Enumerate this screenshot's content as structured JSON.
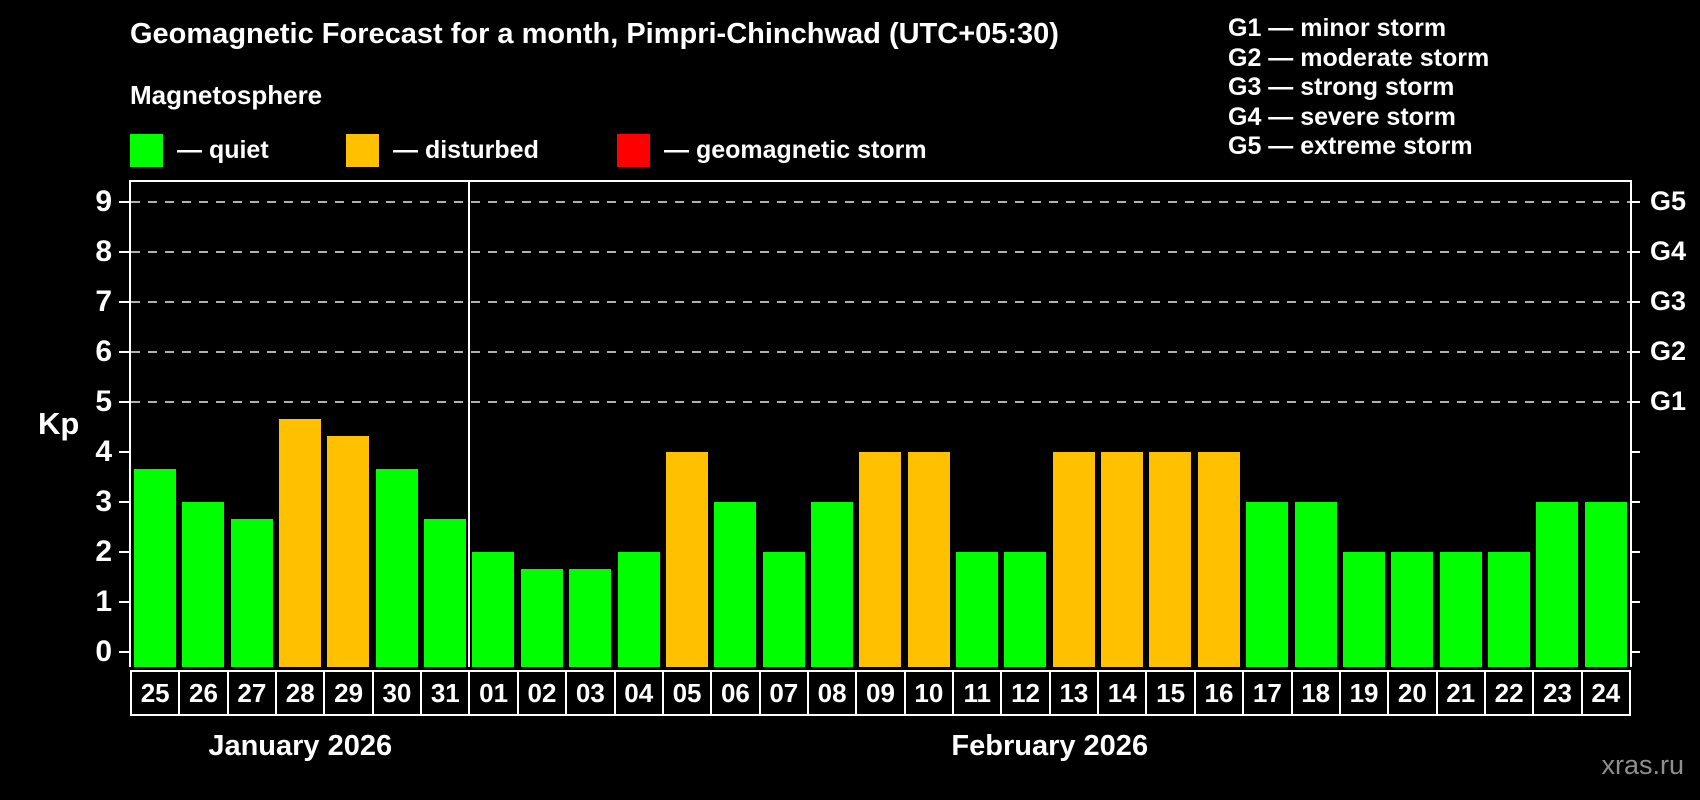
{
  "title": "Geomagnetic Forecast for a month, Pimpri-Chinchwad (UTC+05:30)",
  "subtitle": "Magnetosphere",
  "legend": [
    {
      "key": "quiet",
      "label": "— quiet"
    },
    {
      "key": "disturbed",
      "label": "— disturbed"
    },
    {
      "key": "storm",
      "label": "— geomagnetic storm"
    }
  ],
  "storm_scale": [
    "G1 — minor storm",
    "G2 — moderate storm",
    "G3 — strong storm",
    "G4 — severe storm",
    "G5 — extreme storm"
  ],
  "colors": {
    "quiet": "#00ff00",
    "disturbed": "#ffc000",
    "storm": "#ff0000",
    "grid": "#b0b0b0",
    "axis": "#ffffff",
    "watermark": "#8f8f8f"
  },
  "watermark": "xras.ru",
  "y_axis_label": "Kp",
  "chart_data": {
    "type": "bar",
    "title": "Geomagnetic Forecast for a month, Pimpri-Chinchwad (UTC+05:30)",
    "xlabel": "",
    "ylabel": "Kp",
    "ylim": [
      0,
      9
    ],
    "y_ticks": [
      0,
      1,
      2,
      3,
      4,
      5,
      6,
      7,
      8,
      9
    ],
    "gridline_kp": [
      5,
      6,
      7,
      8,
      9
    ],
    "grid": "dashed horizontal at G-levels only",
    "legend_position": "top-left",
    "right_axis_labels": [
      {
        "kp": 5,
        "label": "G1"
      },
      {
        "kp": 6,
        "label": "G2"
      },
      {
        "kp": 7,
        "label": "G3"
      },
      {
        "kp": 8,
        "label": "G4"
      },
      {
        "kp": 9,
        "label": "G5"
      }
    ],
    "months": [
      {
        "label": "January 2026",
        "days": [
          {
            "date": "25",
            "kp": 3.67,
            "status": "quiet"
          },
          {
            "date": "26",
            "kp": 3.0,
            "status": "quiet"
          },
          {
            "date": "27",
            "kp": 2.67,
            "status": "quiet"
          },
          {
            "date": "28",
            "kp": 4.67,
            "status": "disturbed"
          },
          {
            "date": "29",
            "kp": 4.33,
            "status": "disturbed"
          },
          {
            "date": "30",
            "kp": 3.67,
            "status": "quiet"
          },
          {
            "date": "31",
            "kp": 2.67,
            "status": "quiet"
          }
        ]
      },
      {
        "label": "February 2026",
        "days": [
          {
            "date": "01",
            "kp": 2.0,
            "status": "quiet"
          },
          {
            "date": "02",
            "kp": 1.67,
            "status": "quiet"
          },
          {
            "date": "03",
            "kp": 1.67,
            "status": "quiet"
          },
          {
            "date": "04",
            "kp": 2.0,
            "status": "quiet"
          },
          {
            "date": "05",
            "kp": 4.0,
            "status": "disturbed"
          },
          {
            "date": "06",
            "kp": 3.0,
            "status": "quiet"
          },
          {
            "date": "07",
            "kp": 2.0,
            "status": "quiet"
          },
          {
            "date": "08",
            "kp": 3.0,
            "status": "quiet"
          },
          {
            "date": "09",
            "kp": 4.0,
            "status": "disturbed"
          },
          {
            "date": "10",
            "kp": 4.0,
            "status": "disturbed"
          },
          {
            "date": "11",
            "kp": 2.0,
            "status": "quiet"
          },
          {
            "date": "12",
            "kp": 2.0,
            "status": "quiet"
          },
          {
            "date": "13",
            "kp": 4.0,
            "status": "disturbed"
          },
          {
            "date": "14",
            "kp": 4.0,
            "status": "disturbed"
          },
          {
            "date": "15",
            "kp": 4.0,
            "status": "disturbed"
          },
          {
            "date": "16",
            "kp": 4.0,
            "status": "disturbed"
          },
          {
            "date": "17",
            "kp": 3.0,
            "status": "quiet"
          },
          {
            "date": "18",
            "kp": 3.0,
            "status": "quiet"
          },
          {
            "date": "19",
            "kp": 2.0,
            "status": "quiet"
          },
          {
            "date": "20",
            "kp": 2.0,
            "status": "quiet"
          },
          {
            "date": "21",
            "kp": 2.0,
            "status": "quiet"
          },
          {
            "date": "22",
            "kp": 2.0,
            "status": "quiet"
          },
          {
            "date": "23",
            "kp": 3.0,
            "status": "quiet"
          },
          {
            "date": "24",
            "kp": 3.0,
            "status": "quiet"
          }
        ]
      }
    ]
  }
}
